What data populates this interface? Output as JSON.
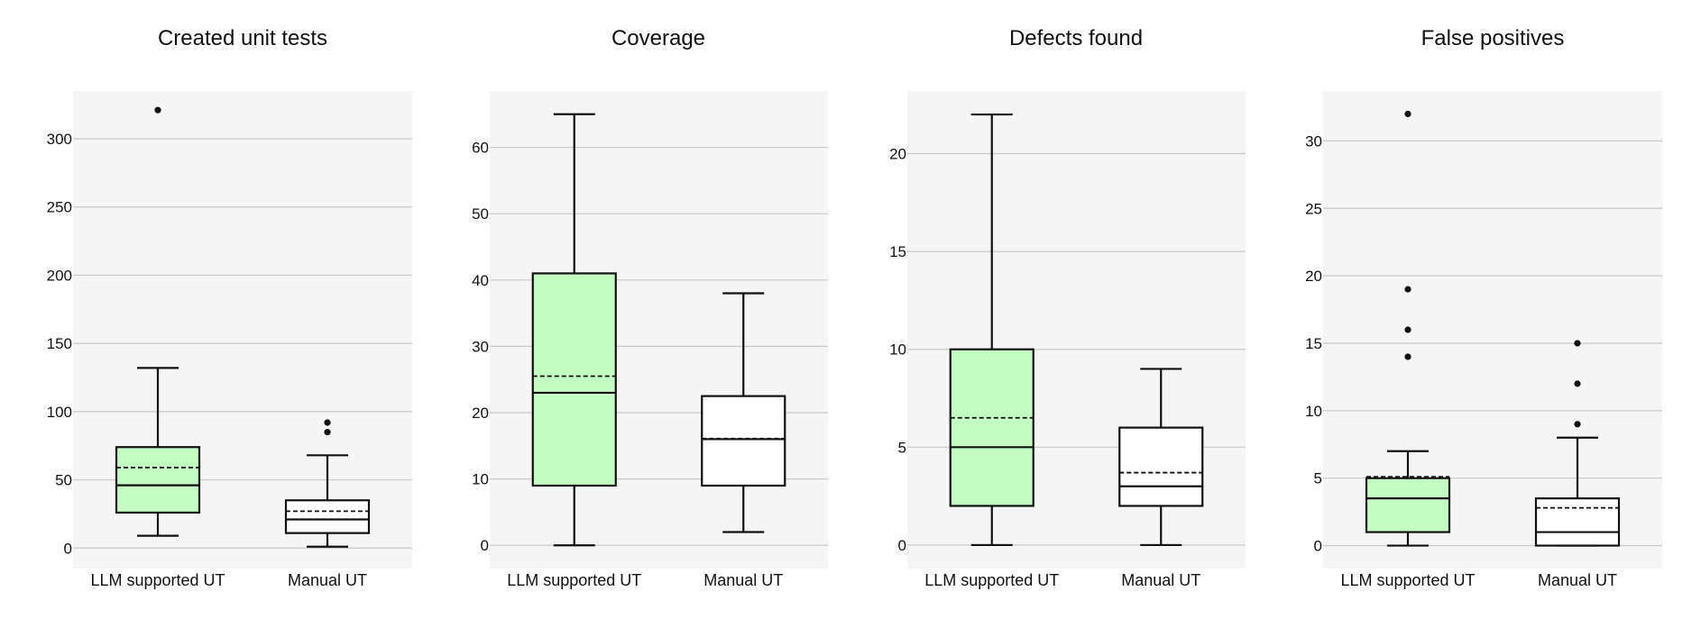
{
  "colors": {
    "panel_bg": "#f5f5f5",
    "grid": "#c8c8c8",
    "llm_fill": "#c4fcc4",
    "manual_fill": "#ffffff",
    "stroke": "#111111"
  },
  "legend": {
    "median": "solid line",
    "mean": "dashed line"
  },
  "chart_data": [
    {
      "type": "box",
      "title": "Created unit tests",
      "categories": [
        "LLM supported UT",
        "Manual UT"
      ],
      "ylim": [
        -15,
        335
      ],
      "yticks": [
        0,
        50,
        100,
        150,
        200,
        250,
        300
      ],
      "grid": true,
      "boxes": [
        {
          "category": "LLM supported UT",
          "fill": "llm",
          "whisker_low": 9,
          "q1": 26,
          "median": 46,
          "mean": 59,
          "q3": 74,
          "whisker_high": 132,
          "outliers": [
            321
          ]
        },
        {
          "category": "Manual UT",
          "fill": "manual",
          "whisker_low": 1,
          "q1": 11,
          "median": 21,
          "mean": 27,
          "q3": 35,
          "whisker_high": 68,
          "outliers": [
            85,
            92
          ]
        }
      ]
    },
    {
      "type": "box",
      "title": "Coverage",
      "categories": [
        "LLM supported UT",
        "Manual UT"
      ],
      "ylim": [
        -3.5,
        68.5
      ],
      "yticks": [
        0,
        10,
        20,
        30,
        40,
        50,
        60
      ],
      "grid": true,
      "boxes": [
        {
          "category": "LLM supported UT",
          "fill": "llm",
          "whisker_low": 0,
          "q1": 9,
          "median": 23,
          "mean": 25.5,
          "q3": 41,
          "whisker_high": 65,
          "outliers": []
        },
        {
          "category": "Manual UT",
          "fill": "manual",
          "whisker_low": 2,
          "q1": 9,
          "median": 16,
          "mean": 16.1,
          "q3": 22.5,
          "whisker_high": 38,
          "outliers": []
        }
      ]
    },
    {
      "type": "box",
      "title": "Defects found",
      "categories": [
        "LLM supported UT",
        "Manual UT"
      ],
      "ylim": [
        -1.2,
        23.2
      ],
      "yticks": [
        0,
        5,
        10,
        15,
        20
      ],
      "grid": true,
      "boxes": [
        {
          "category": "LLM supported UT",
          "fill": "llm",
          "whisker_low": 0,
          "q1": 2,
          "median": 5,
          "mean": 6.5,
          "q3": 10,
          "whisker_high": 22,
          "outliers": []
        },
        {
          "category": "Manual UT",
          "fill": "manual",
          "whisker_low": 0,
          "q1": 2,
          "median": 3,
          "mean": 3.7,
          "q3": 6,
          "whisker_high": 9,
          "outliers": []
        }
      ]
    },
    {
      "type": "box",
      "title": "False positives",
      "categories": [
        "LLM supported UT",
        "Manual UT"
      ],
      "ylim": [
        -1.7,
        33.7
      ],
      "yticks": [
        0,
        5,
        10,
        15,
        20,
        25,
        30
      ],
      "grid": true,
      "boxes": [
        {
          "category": "LLM supported UT",
          "fill": "llm",
          "whisker_low": 0,
          "q1": 1,
          "median": 3.5,
          "mean": 5.1,
          "q3": 5,
          "whisker_high": 7,
          "outliers": [
            14,
            16,
            19,
            32
          ]
        },
        {
          "category": "Manual UT",
          "fill": "manual",
          "whisker_low": 0,
          "q1": 0,
          "median": 1,
          "mean": 2.8,
          "q3": 3.5,
          "whisker_high": 8,
          "outliers": [
            9,
            12,
            15
          ]
        }
      ]
    }
  ]
}
